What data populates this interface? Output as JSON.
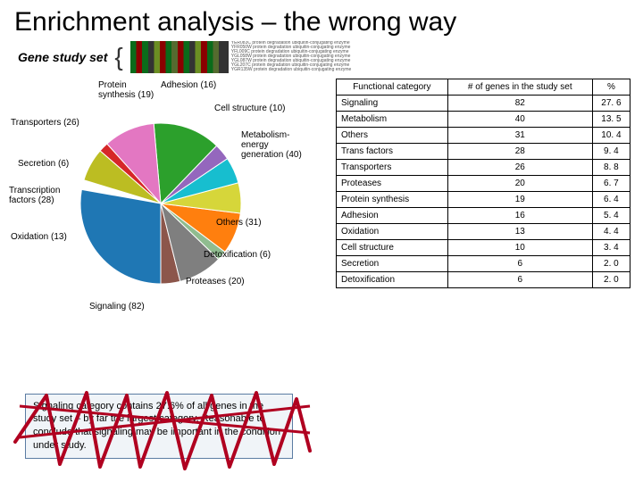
{
  "title": "Enrichment analysis – the wrong way",
  "geneStudy": {
    "label": "Gene study set",
    "rightTextLines": "YER083C protein degradation ubiquitin-conjugating enzyme\nYFR050W protein degradation ubiquitin-conjugating enzyme\nYFL009C protein degradation ubiquitin-conjugating enzyme\nYGL058W protein degradation ubiquitin-conjugating enzyme\nYGL087W protein degradation ubiquitin-conjugating enzyme\nYGL207C protein degradation ubiquitin-conjugating enzyme\nYGR135W protein degradation ubiquitin-conjugating enzyme"
  },
  "pie": {
    "labels": {
      "protein": "Protein\nsynthesis (19)",
      "adhesion": "Adhesion (16)",
      "cellstruct": "Cell structure (10)",
      "transporters": "Transporters (26)",
      "secretion": "Secretion (6)",
      "transcription": "Transcription\nfactors (28)",
      "oxidation": "Oxidation (13)",
      "signaling": "Signaling (82)",
      "metabolism": "Metabolism-\nenergy\ngeneration (40)",
      "others": "Others (31)",
      "detox": "Detoxification (6)",
      "proteases": "Proteases (20)"
    },
    "slices": [
      {
        "label": "signaling",
        "value": 82,
        "color": "#1f77b4",
        "start": 180,
        "end": 280
      },
      {
        "label": "oxidation",
        "value": 13,
        "color": "#8c564b",
        "start": 166,
        "end": 180
      },
      {
        "label": "transcription",
        "value": 28,
        "color": "#7f7f7f",
        "start": 134,
        "end": 166
      },
      {
        "label": "secretion",
        "value": 6,
        "color": "#8fbc8f",
        "start": 127,
        "end": 134
      },
      {
        "label": "transporters",
        "value": 26,
        "color": "#ff7f0e",
        "start": 97,
        "end": 127
      },
      {
        "label": "protein",
        "value": 19,
        "color": "#d6d63a",
        "start": 75,
        "end": 97
      },
      {
        "label": "adhesion",
        "value": 16,
        "color": "#17becf",
        "start": 56,
        "end": 75
      },
      {
        "label": "cellstruct",
        "value": 10,
        "color": "#9467bd",
        "start": 44,
        "end": 56
      },
      {
        "label": "metabolism",
        "value": 40,
        "color": "#2ca02c",
        "start": 355,
        "end": 404
      },
      {
        "label": "others",
        "value": 31,
        "color": "#e377c2",
        "start": 318,
        "end": 355
      },
      {
        "label": "detox",
        "value": 6,
        "color": "#d62728",
        "start": 311,
        "end": 318
      },
      {
        "label": "proteases",
        "value": 20,
        "color": "#bcbd22",
        "start": 287,
        "end": 311
      }
    ]
  },
  "table": {
    "headers": [
      "Functional category",
      "# of genes in the study set",
      "%"
    ],
    "rows": [
      [
        "Signaling",
        "82",
        "27. 6"
      ],
      [
        "Metabolism",
        "40",
        "13. 5"
      ],
      [
        "Others",
        "31",
        "10. 4"
      ],
      [
        "Trans factors",
        "28",
        "9. 4"
      ],
      [
        "Transporters",
        "26",
        "8. 8"
      ],
      [
        "Proteases",
        "20",
        "6. 7"
      ],
      [
        "Protein synthesis",
        "19",
        "6. 4"
      ],
      [
        "Adhesion",
        "16",
        "5. 4"
      ],
      [
        "Oxidation",
        "13",
        "4. 4"
      ],
      [
        "Cell structure",
        "10",
        "3. 4"
      ],
      [
        "Secretion",
        "6",
        "2. 0"
      ],
      [
        "Detoxification",
        "6",
        "2. 0"
      ]
    ]
  },
  "caption": "Signaling category contains 27.6% of all genes in the study set – by far the largest category. Reasonable to conclude that signaling may be important in the condition under study.",
  "scribbleColor": "#b00020"
}
